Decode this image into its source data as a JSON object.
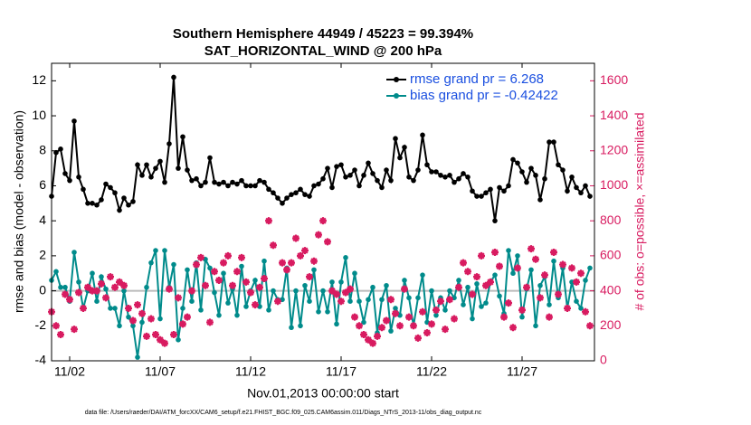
{
  "chart_data": {
    "type": "line",
    "title": "Southern Hemisphere 44949 / 45223 = 99.394%",
    "subtitle": "SAT_HORIZONTAL_WIND @ 200 hPa",
    "ylabel": "rmse and bias (model - observation)",
    "y2label": "# of obs: o=possible, ×=assimilated",
    "xlabel": "Nov.01,2013 00:00:00 start",
    "footnote": "data file: /Users/raeder/DAI/ATM_forcXX/CAM6_setup/f.e21.FHIST_BGC.f09_025.CAM6assim.011/Diags_NTrS_2013-11/obs_diag_output.nc",
    "legend": "northeast",
    "xlim": [
      0,
      30
    ],
    "xticks": [
      {
        "value": 1,
        "label": "11/02"
      },
      {
        "value": 6,
        "label": "11/07"
      },
      {
        "value": 11,
        "label": "11/12"
      },
      {
        "value": 16,
        "label": "11/17"
      },
      {
        "value": 21,
        "label": "11/22"
      },
      {
        "value": 26,
        "label": "11/27"
      }
    ],
    "ylim": [
      -4,
      13
    ],
    "yticks": [
      -4,
      -2,
      0,
      2,
      4,
      6,
      8,
      10,
      12
    ],
    "y2lim": [
      0,
      1700
    ],
    "y2ticks": [
      0,
      200,
      400,
      600,
      800,
      1000,
      1200,
      1400,
      1600
    ],
    "x": [
      0,
      0.25,
      0.5,
      0.75,
      1,
      1.25,
      1.5,
      1.75,
      2,
      2.25,
      2.5,
      2.75,
      3,
      3.25,
      3.5,
      3.75,
      4,
      4.25,
      4.5,
      4.75,
      5,
      5.25,
      5.5,
      5.75,
      6,
      6.25,
      6.5,
      6.75,
      7,
      7.25,
      7.5,
      7.75,
      8,
      8.25,
      8.5,
      8.75,
      9,
      9.25,
      9.5,
      9.75,
      10,
      10.25,
      10.5,
      10.75,
      11,
      11.25,
      11.5,
      11.75,
      12,
      12.25,
      12.5,
      12.75,
      13,
      13.25,
      13.5,
      13.75,
      14,
      14.25,
      14.5,
      14.75,
      15,
      15.25,
      15.5,
      15.75,
      16,
      16.25,
      16.5,
      16.75,
      17,
      17.25,
      17.5,
      17.75,
      18,
      18.25,
      18.5,
      18.75,
      19,
      19.25,
      19.5,
      19.75,
      20,
      20.25,
      20.5,
      20.75,
      21,
      21.25,
      21.5,
      21.75,
      22,
      22.25,
      22.5,
      22.75,
      23,
      23.25,
      23.5,
      23.75,
      24,
      24.25,
      24.5,
      24.75,
      25,
      25.25,
      25.5,
      25.75,
      26,
      26.25,
      26.5,
      26.75,
      27,
      27.25,
      27.5,
      27.75,
      28,
      28.25,
      28.5,
      28.75,
      29,
      29.25,
      29.5,
      29.75
    ],
    "series": [
      {
        "name": "rmse grand pr = 6.268",
        "color": "#000000",
        "values": [
          5.4,
          7.9,
          8.1,
          6.7,
          6.3,
          9.7,
          6.5,
          5.8,
          5.0,
          5.0,
          4.9,
          5.2,
          6.1,
          5.9,
          5.6,
          4.6,
          5.3,
          4.9,
          5.1,
          7.2,
          6.6,
          7.2,
          6.5,
          7.0,
          7.4,
          6.2,
          8.4,
          12.2,
          7.0,
          8.8,
          6.9,
          6.3,
          6.4,
          6.0,
          6.2,
          7.6,
          6.2,
          6.1,
          6.2,
          6.0,
          6.2,
          6.1,
          6.3,
          6.0,
          6.0,
          6.0,
          6.3,
          6.2,
          5.8,
          5.6,
          5.3,
          5.0,
          5.3,
          5.5,
          5.6,
          5.8,
          5.5,
          5.4,
          6.0,
          6.1,
          6.4,
          7.0,
          5.9,
          7.1,
          7.2,
          6.5,
          6.6,
          6.9,
          6.0,
          6.6,
          7.3,
          6.7,
          6.3,
          5.9,
          6.9,
          6.3,
          8.7,
          7.6,
          8.2,
          6.5,
          6.3,
          6.9,
          8.9,
          7.2,
          6.8,
          6.8,
          6.6,
          6.5,
          6.6,
          6.2,
          6.4,
          6.7,
          6.5,
          5.7,
          5.4,
          5.4,
          5.6,
          5.8,
          4.0,
          5.9,
          5.7,
          6.0,
          7.5,
          7.3,
          6.8,
          6.2,
          7.0,
          6.6,
          5.2,
          6.4,
          8.5,
          8.5,
          7.2,
          6.9,
          5.7,
          6.5,
          5.9,
          5.6,
          6.0,
          5.4
        ]
      },
      {
        "name": "bias grand pr = -0.42422",
        "color": "#008b8b",
        "values": [
          0.6,
          1.1,
          0.2,
          0.2,
          -0.6,
          2.2,
          0.5,
          -1.0,
          0.0,
          1.0,
          -0.6,
          0.8,
          0.1,
          -1.0,
          -1.0,
          -2.0,
          0.0,
          -1.5,
          -2.0,
          -3.8,
          -1.8,
          0.2,
          1.6,
          2.3,
          -1.6,
          2.3,
          0.2,
          1.5,
          -2.8,
          -1.0,
          1.2,
          -0.6,
          1.6,
          -1.1,
          1.8,
          1.3,
          -0.1,
          -1.4,
          1.0,
          -0.7,
          0.1,
          -1.4,
          1.4,
          -0.9,
          0.0,
          0.6,
          -0.9,
          1.7,
          -1.1,
          0.0,
          -0.5,
          -0.5,
          1.3,
          -2.1,
          0.0,
          -2.0,
          0.3,
          -0.6,
          1.2,
          -1.2,
          0.0,
          -1.2,
          0.5,
          -1.9,
          0.5,
          1.9,
          -0.6,
          1.0,
          -0.6,
          -1.8,
          -0.5,
          0.2,
          -2.4,
          -0.5,
          0.3,
          -2.3,
          -1.0,
          -1.4,
          0.6,
          -0.4,
          -2.0,
          -0.4,
          0.9,
          -1.8,
          0.0,
          -1.4,
          -0.4,
          -1.1,
          0.0,
          -0.4,
          0.6,
          -0.8,
          0.2,
          -1.6,
          0.4,
          -0.9,
          -0.7,
          0.5,
          0.9,
          -0.3,
          -1.3,
          2.3,
          1.0,
          2.0,
          -1.5,
          0.1,
          1.2,
          -2.0,
          0.3,
          0.8,
          -0.8,
          1.7,
          -0.4,
          1.3,
          -1.0,
          0.5,
          -0.6,
          -1.0,
          0.6,
          1.3
        ]
      },
      {
        "color": "#d81b60",
        "axis": "y2",
        "marker": "star",
        "values": [
          280,
          200,
          150,
          380,
          350,
          180,
          390,
          300,
          420,
          400,
          400,
          440,
          360,
          480,
          420,
          450,
          430,
          300,
          230,
          320,
          270,
          140,
          240,
          150,
          120,
          100,
          410,
          150,
          360,
          210,
          250,
          400,
          550,
          590,
          430,
          220,
          510,
          460,
          560,
          600,
          430,
          510,
          590,
          450,
          390,
          320,
          420,
          470,
          800,
          660,
          340,
          560,
          520,
          560,
          700,
          600,
          630,
          480,
          570,
          720,
          800,
          680,
          400,
          380,
          340,
          390,
          410,
          250,
          200,
          150,
          120,
          100,
          140,
          190,
          230,
          350,
          270,
          200,
          410,
          250,
          200,
          130,
          280,
          160,
          210,
          290,
          340,
          180,
          350,
          240,
          420,
          560,
          510,
          380,
          480,
          600,
          430,
          450,
          620,
          540,
          250,
          330,
          190,
          530,
          290,
          420,
          640,
          580,
          360,
          490,
          250,
          620,
          380,
          550,
          300,
          530,
          450,
          500,
          280,
          200
        ]
      }
    ]
  }
}
